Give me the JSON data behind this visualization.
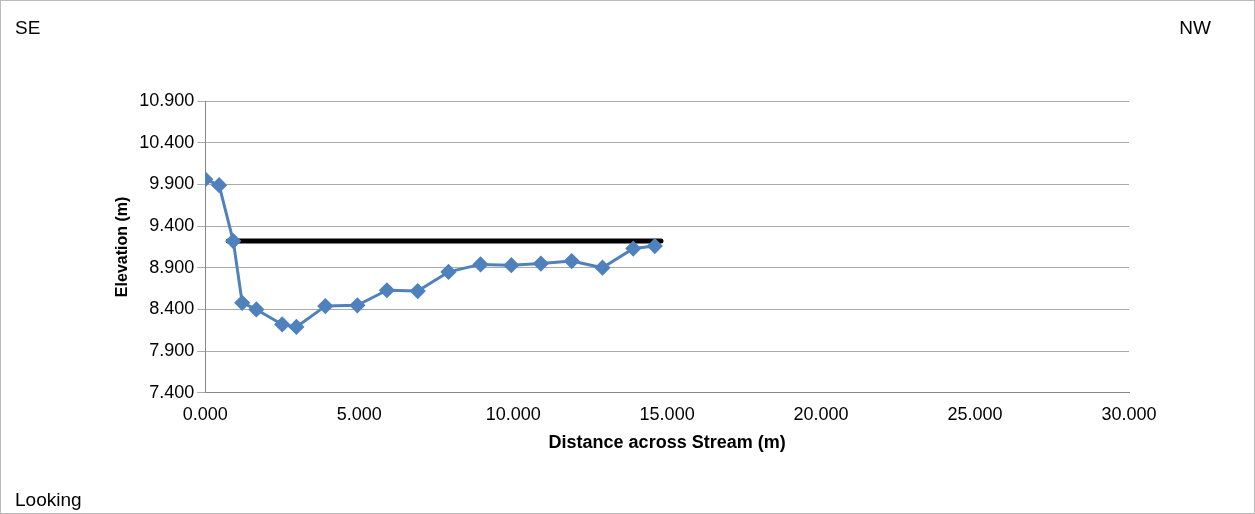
{
  "chart_data": {
    "type": "line",
    "xlabel": "Distance across Stream (m)",
    "ylabel": "Elevation (m)",
    "annotations": [
      "SE",
      "NW",
      "Looking"
    ],
    "series": [
      {
        "color": "#4f81bd",
        "x": [
          0,
          0.45,
          0.91,
          1.2,
          1.66,
          2.5,
          2.96,
          3.9,
          4.94,
          5.9,
          6.9,
          7.9,
          8.94,
          9.94,
          10.9,
          11.9,
          12.9,
          13.9,
          14.6
        ],
        "values": [
          9.96,
          9.89,
          9.22,
          8.48,
          8.4,
          8.22,
          8.19,
          8.44,
          8.45,
          8.63,
          8.62,
          8.85,
          8.94,
          8.93,
          8.95,
          8.98,
          8.9,
          9.13,
          9.16
        ]
      },
      {
        "color": "#000000",
        "marker": "none",
        "x": [
          0.75,
          14.8
        ],
        "values": [
          9.22,
          9.22
        ]
      }
    ],
    "xlim": [
      0,
      30
    ],
    "xticks": [
      {
        "value": 0,
        "label": "0.000"
      },
      {
        "value": 5,
        "label": "5.000"
      },
      {
        "value": 10,
        "label": "10.000"
      },
      {
        "value": 15,
        "label": "15.000"
      },
      {
        "value": 20,
        "label": "20.000"
      },
      {
        "value": 25,
        "label": "25.000"
      },
      {
        "value": 30,
        "label": "30.000"
      }
    ],
    "ylim": [
      7.4,
      10.9
    ],
    "yticks": [
      {
        "value": 7.4,
        "label": "7.400"
      },
      {
        "value": 7.9,
        "label": "7.900"
      },
      {
        "value": 8.4,
        "label": "8.400"
      },
      {
        "value": 8.9,
        "label": "8.900"
      },
      {
        "value": 9.4,
        "label": "9.400"
      },
      {
        "value": 9.9,
        "label": "9.900"
      },
      {
        "value": 10.4,
        "label": "10.400"
      },
      {
        "value": 10.9,
        "label": "10.900"
      }
    ],
    "grid": "y",
    "legend": false,
    "marker": "diamond",
    "line_style": "solid"
  }
}
